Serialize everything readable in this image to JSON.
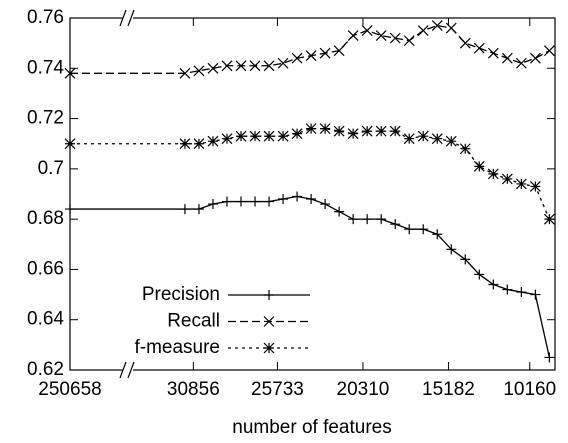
{
  "chart_data": {
    "type": "line",
    "x_label": "number of features",
    "x": [
      0,
      8.2,
      9.2,
      10.2,
      11.2,
      12.2,
      13.2,
      14.2,
      15.2,
      16.2,
      17.2,
      18.2,
      19.2,
      20.2,
      21.2,
      22.2,
      23.2,
      24.2,
      25.2,
      26.2,
      27.2,
      28.2,
      29.2,
      30.2,
      31.2,
      32.2,
      33.2,
      34.2
    ],
    "xlim": [
      0,
      34.6
    ],
    "xticks": [
      {
        "value": 0,
        "label": "250658"
      },
      {
        "value": 8.8,
        "label": "30856"
      },
      {
        "value": 14.8,
        "label": "25733"
      },
      {
        "value": 20.9,
        "label": "20310"
      },
      {
        "value": 27.0,
        "label": "15182"
      },
      {
        "value": 32.8,
        "label": "10160"
      }
    ],
    "ylim": [
      0.62,
      0.76
    ],
    "yticks": [
      {
        "value": 0.62,
        "label": "0.62"
      },
      {
        "value": 0.64,
        "label": "0.64"
      },
      {
        "value": 0.66,
        "label": "0.66"
      },
      {
        "value": 0.68,
        "label": "0.68"
      },
      {
        "value": 0.7,
        "label": "0.7"
      },
      {
        "value": 0.72,
        "label": "0.72"
      },
      {
        "value": 0.74,
        "label": "0.74"
      },
      {
        "value": 0.76,
        "label": "0.76"
      }
    ],
    "legend": "bottom-left",
    "series": [
      {
        "name": "Precision",
        "color": "#000000",
        "dash": "none",
        "marker": "plus",
        "values": [
          0.684,
          0.684,
          0.684,
          0.686,
          0.687,
          0.687,
          0.687,
          0.687,
          0.688,
          0.689,
          0.688,
          0.686,
          0.683,
          0.68,
          0.68,
          0.68,
          0.678,
          0.676,
          0.676,
          0.674,
          0.668,
          0.664,
          0.658,
          0.654,
          0.652,
          0.651,
          0.65,
          0.625
        ]
      },
      {
        "name": "Recall",
        "color": "#000000",
        "dash": "8,4",
        "marker": "cross",
        "values": [
          0.738,
          0.738,
          0.739,
          0.74,
          0.741,
          0.741,
          0.741,
          0.741,
          0.742,
          0.744,
          0.745,
          0.746,
          0.747,
          0.753,
          0.755,
          0.753,
          0.752,
          0.751,
          0.755,
          0.757,
          0.756,
          0.75,
          0.748,
          0.746,
          0.744,
          0.742,
          0.744,
          0.747
        ]
      },
      {
        "name": "f-measure",
        "color": "#000000",
        "dash": "3,4",
        "marker": "star",
        "values": [
          0.71,
          0.71,
          0.71,
          0.711,
          0.712,
          0.713,
          0.713,
          0.713,
          0.713,
          0.714,
          0.716,
          0.716,
          0.715,
          0.714,
          0.715,
          0.715,
          0.715,
          0.712,
          0.713,
          0.712,
          0.711,
          0.708,
          0.701,
          0.698,
          0.696,
          0.694,
          0.693,
          0.68
        ]
      }
    ]
  }
}
